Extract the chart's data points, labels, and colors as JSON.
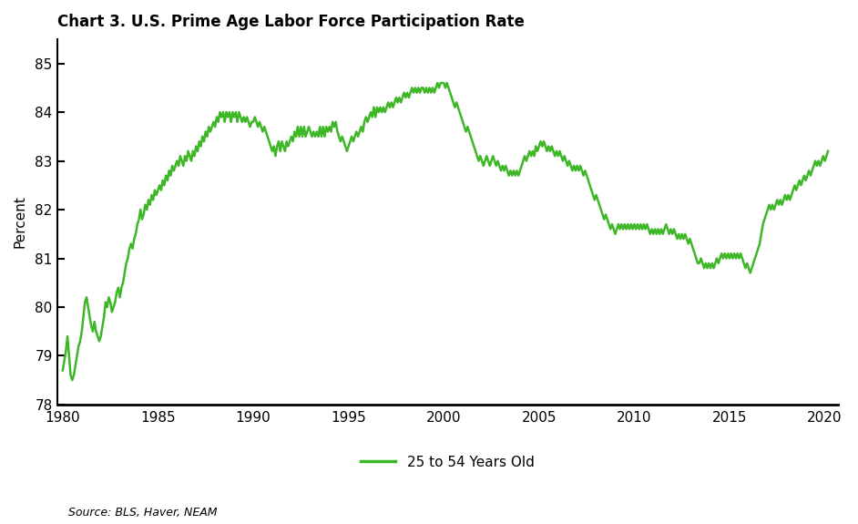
{
  "title": "Chart 3. U.S. Prime Age Labor Force Participation Rate",
  "ylabel": "Percent",
  "legend_label": "25 to 54 Years Old",
  "source": "Source: BLS, Haver, NEAM",
  "line_color": "#3db726",
  "ylim": [
    78,
    85.5
  ],
  "yticks": [
    78,
    79,
    80,
    81,
    82,
    83,
    84,
    85
  ],
  "xlim_start": 1979.7,
  "xlim_end": 2020.7,
  "xticks": [
    1980,
    1985,
    1990,
    1995,
    2000,
    2005,
    2010,
    2015,
    2020
  ],
  "data": [
    [
      1980.0,
      78.7
    ],
    [
      1980.083,
      78.9
    ],
    [
      1980.167,
      79.1
    ],
    [
      1980.25,
      79.4
    ],
    [
      1980.333,
      79.0
    ],
    [
      1980.417,
      78.6
    ],
    [
      1980.5,
      78.5
    ],
    [
      1980.583,
      78.6
    ],
    [
      1980.667,
      78.8
    ],
    [
      1980.75,
      79.0
    ],
    [
      1980.833,
      79.2
    ],
    [
      1980.917,
      79.3
    ],
    [
      1981.0,
      79.5
    ],
    [
      1981.083,
      79.8
    ],
    [
      1981.167,
      80.1
    ],
    [
      1981.25,
      80.2
    ],
    [
      1981.333,
      80.0
    ],
    [
      1981.417,
      79.8
    ],
    [
      1981.5,
      79.6
    ],
    [
      1981.583,
      79.5
    ],
    [
      1981.667,
      79.7
    ],
    [
      1981.75,
      79.5
    ],
    [
      1981.833,
      79.4
    ],
    [
      1981.917,
      79.3
    ],
    [
      1982.0,
      79.4
    ],
    [
      1982.083,
      79.6
    ],
    [
      1982.167,
      79.8
    ],
    [
      1982.25,
      80.1
    ],
    [
      1982.333,
      80.0
    ],
    [
      1982.417,
      80.2
    ],
    [
      1982.5,
      80.1
    ],
    [
      1982.583,
      79.9
    ],
    [
      1982.667,
      80.0
    ],
    [
      1982.75,
      80.1
    ],
    [
      1982.833,
      80.3
    ],
    [
      1982.917,
      80.4
    ],
    [
      1983.0,
      80.2
    ],
    [
      1983.083,
      80.4
    ],
    [
      1983.167,
      80.5
    ],
    [
      1983.25,
      80.7
    ],
    [
      1983.333,
      80.9
    ],
    [
      1983.417,
      81.0
    ],
    [
      1983.5,
      81.2
    ],
    [
      1983.583,
      81.3
    ],
    [
      1983.667,
      81.2
    ],
    [
      1983.75,
      81.4
    ],
    [
      1983.833,
      81.5
    ],
    [
      1983.917,
      81.7
    ],
    [
      1984.0,
      81.8
    ],
    [
      1984.083,
      82.0
    ],
    [
      1984.167,
      81.8
    ],
    [
      1984.25,
      81.9
    ],
    [
      1984.333,
      82.1
    ],
    [
      1984.417,
      82.0
    ],
    [
      1984.5,
      82.2
    ],
    [
      1984.583,
      82.1
    ],
    [
      1984.667,
      82.3
    ],
    [
      1984.75,
      82.2
    ],
    [
      1984.833,
      82.4
    ],
    [
      1984.917,
      82.3
    ],
    [
      1985.0,
      82.4
    ],
    [
      1985.083,
      82.5
    ],
    [
      1985.167,
      82.4
    ],
    [
      1985.25,
      82.6
    ],
    [
      1985.333,
      82.5
    ],
    [
      1985.417,
      82.7
    ],
    [
      1985.5,
      82.6
    ],
    [
      1985.583,
      82.8
    ],
    [
      1985.667,
      82.7
    ],
    [
      1985.75,
      82.9
    ],
    [
      1985.833,
      82.8
    ],
    [
      1985.917,
      82.9
    ],
    [
      1986.0,
      83.0
    ],
    [
      1986.083,
      82.9
    ],
    [
      1986.167,
      83.1
    ],
    [
      1986.25,
      83.0
    ],
    [
      1986.333,
      82.9
    ],
    [
      1986.417,
      83.1
    ],
    [
      1986.5,
      83.0
    ],
    [
      1986.583,
      83.2
    ],
    [
      1986.667,
      83.1
    ],
    [
      1986.75,
      83.0
    ],
    [
      1986.833,
      83.2
    ],
    [
      1986.917,
      83.1
    ],
    [
      1987.0,
      83.3
    ],
    [
      1987.083,
      83.2
    ],
    [
      1987.167,
      83.4
    ],
    [
      1987.25,
      83.3
    ],
    [
      1987.333,
      83.5
    ],
    [
      1987.417,
      83.4
    ],
    [
      1987.5,
      83.6
    ],
    [
      1987.583,
      83.5
    ],
    [
      1987.667,
      83.7
    ],
    [
      1987.75,
      83.6
    ],
    [
      1987.833,
      83.7
    ],
    [
      1987.917,
      83.8
    ],
    [
      1988.0,
      83.7
    ],
    [
      1988.083,
      83.9
    ],
    [
      1988.167,
      83.8
    ],
    [
      1988.25,
      84.0
    ],
    [
      1988.333,
      83.9
    ],
    [
      1988.417,
      84.0
    ],
    [
      1988.5,
      83.8
    ],
    [
      1988.583,
      84.0
    ],
    [
      1988.667,
      83.9
    ],
    [
      1988.75,
      84.0
    ],
    [
      1988.833,
      83.8
    ],
    [
      1988.917,
      84.0
    ],
    [
      1989.0,
      83.9
    ],
    [
      1989.083,
      84.0
    ],
    [
      1989.167,
      83.8
    ],
    [
      1989.25,
      84.0
    ],
    [
      1989.333,
      83.9
    ],
    [
      1989.417,
      83.8
    ],
    [
      1989.5,
      83.9
    ],
    [
      1989.583,
      83.8
    ],
    [
      1989.667,
      83.9
    ],
    [
      1989.75,
      83.8
    ],
    [
      1989.833,
      83.7
    ],
    [
      1989.917,
      83.8
    ],
    [
      1990.0,
      83.8
    ],
    [
      1990.083,
      83.9
    ],
    [
      1990.167,
      83.8
    ],
    [
      1990.25,
      83.7
    ],
    [
      1990.333,
      83.8
    ],
    [
      1990.417,
      83.7
    ],
    [
      1990.5,
      83.6
    ],
    [
      1990.583,
      83.7
    ],
    [
      1990.667,
      83.6
    ],
    [
      1990.75,
      83.5
    ],
    [
      1990.833,
      83.4
    ],
    [
      1990.917,
      83.3
    ],
    [
      1991.0,
      83.2
    ],
    [
      1991.083,
      83.3
    ],
    [
      1991.167,
      83.1
    ],
    [
      1991.25,
      83.3
    ],
    [
      1991.333,
      83.4
    ],
    [
      1991.417,
      83.2
    ],
    [
      1991.5,
      83.4
    ],
    [
      1991.583,
      83.3
    ],
    [
      1991.667,
      83.2
    ],
    [
      1991.75,
      83.4
    ],
    [
      1991.833,
      83.3
    ],
    [
      1991.917,
      83.4
    ],
    [
      1992.0,
      83.5
    ],
    [
      1992.083,
      83.4
    ],
    [
      1992.167,
      83.6
    ],
    [
      1992.25,
      83.5
    ],
    [
      1992.333,
      83.7
    ],
    [
      1992.417,
      83.5
    ],
    [
      1992.5,
      83.7
    ],
    [
      1992.583,
      83.5
    ],
    [
      1992.667,
      83.7
    ],
    [
      1992.75,
      83.5
    ],
    [
      1992.833,
      83.6
    ],
    [
      1992.917,
      83.7
    ],
    [
      1993.0,
      83.6
    ],
    [
      1993.083,
      83.5
    ],
    [
      1993.167,
      83.6
    ],
    [
      1993.25,
      83.5
    ],
    [
      1993.333,
      83.6
    ],
    [
      1993.417,
      83.5
    ],
    [
      1993.5,
      83.7
    ],
    [
      1993.583,
      83.5
    ],
    [
      1993.667,
      83.7
    ],
    [
      1993.75,
      83.5
    ],
    [
      1993.833,
      83.7
    ],
    [
      1993.917,
      83.6
    ],
    [
      1994.0,
      83.7
    ],
    [
      1994.083,
      83.6
    ],
    [
      1994.167,
      83.8
    ],
    [
      1994.25,
      83.7
    ],
    [
      1994.333,
      83.8
    ],
    [
      1994.417,
      83.6
    ],
    [
      1994.5,
      83.5
    ],
    [
      1994.583,
      83.4
    ],
    [
      1994.667,
      83.5
    ],
    [
      1994.75,
      83.4
    ],
    [
      1994.833,
      83.3
    ],
    [
      1994.917,
      83.2
    ],
    [
      1995.0,
      83.3
    ],
    [
      1995.083,
      83.4
    ],
    [
      1995.167,
      83.5
    ],
    [
      1995.25,
      83.4
    ],
    [
      1995.333,
      83.5
    ],
    [
      1995.417,
      83.6
    ],
    [
      1995.5,
      83.5
    ],
    [
      1995.583,
      83.6
    ],
    [
      1995.667,
      83.7
    ],
    [
      1995.75,
      83.6
    ],
    [
      1995.833,
      83.8
    ],
    [
      1995.917,
      83.9
    ],
    [
      1996.0,
      83.8
    ],
    [
      1996.083,
      83.9
    ],
    [
      1996.167,
      84.0
    ],
    [
      1996.25,
      83.9
    ],
    [
      1996.333,
      84.1
    ],
    [
      1996.417,
      83.9
    ],
    [
      1996.5,
      84.1
    ],
    [
      1996.583,
      84.0
    ],
    [
      1996.667,
      84.1
    ],
    [
      1996.75,
      84.0
    ],
    [
      1996.833,
      84.1
    ],
    [
      1996.917,
      84.0
    ],
    [
      1997.0,
      84.1
    ],
    [
      1997.083,
      84.2
    ],
    [
      1997.167,
      84.1
    ],
    [
      1997.25,
      84.2
    ],
    [
      1997.333,
      84.1
    ],
    [
      1997.417,
      84.2
    ],
    [
      1997.5,
      84.3
    ],
    [
      1997.583,
      84.2
    ],
    [
      1997.667,
      84.3
    ],
    [
      1997.75,
      84.2
    ],
    [
      1997.833,
      84.3
    ],
    [
      1997.917,
      84.4
    ],
    [
      1998.0,
      84.3
    ],
    [
      1998.083,
      84.4
    ],
    [
      1998.167,
      84.3
    ],
    [
      1998.25,
      84.4
    ],
    [
      1998.333,
      84.5
    ],
    [
      1998.417,
      84.4
    ],
    [
      1998.5,
      84.5
    ],
    [
      1998.583,
      84.4
    ],
    [
      1998.667,
      84.5
    ],
    [
      1998.75,
      84.4
    ],
    [
      1998.833,
      84.5
    ],
    [
      1998.917,
      84.5
    ],
    [
      1999.0,
      84.4
    ],
    [
      1999.083,
      84.5
    ],
    [
      1999.167,
      84.4
    ],
    [
      1999.25,
      84.5
    ],
    [
      1999.333,
      84.4
    ],
    [
      1999.417,
      84.5
    ],
    [
      1999.5,
      84.4
    ],
    [
      1999.583,
      84.5
    ],
    [
      1999.667,
      84.6
    ],
    [
      1999.75,
      84.5
    ],
    [
      1999.833,
      84.6
    ],
    [
      1999.917,
      84.6
    ],
    [
      2000.0,
      84.6
    ],
    [
      2000.083,
      84.5
    ],
    [
      2000.167,
      84.6
    ],
    [
      2000.25,
      84.5
    ],
    [
      2000.333,
      84.4
    ],
    [
      2000.417,
      84.3
    ],
    [
      2000.5,
      84.2
    ],
    [
      2000.583,
      84.1
    ],
    [
      2000.667,
      84.2
    ],
    [
      2000.75,
      84.1
    ],
    [
      2000.833,
      84.0
    ],
    [
      2000.917,
      83.9
    ],
    [
      2001.0,
      83.8
    ],
    [
      2001.083,
      83.7
    ],
    [
      2001.167,
      83.6
    ],
    [
      2001.25,
      83.7
    ],
    [
      2001.333,
      83.6
    ],
    [
      2001.417,
      83.5
    ],
    [
      2001.5,
      83.4
    ],
    [
      2001.583,
      83.3
    ],
    [
      2001.667,
      83.2
    ],
    [
      2001.75,
      83.1
    ],
    [
      2001.833,
      83.0
    ],
    [
      2001.917,
      83.1
    ],
    [
      2002.0,
      83.0
    ],
    [
      2002.083,
      82.9
    ],
    [
      2002.167,
      83.0
    ],
    [
      2002.25,
      83.1
    ],
    [
      2002.333,
      83.0
    ],
    [
      2002.417,
      82.9
    ],
    [
      2002.5,
      83.0
    ],
    [
      2002.583,
      83.1
    ],
    [
      2002.667,
      83.0
    ],
    [
      2002.75,
      82.9
    ],
    [
      2002.833,
      83.0
    ],
    [
      2002.917,
      82.9
    ],
    [
      2003.0,
      82.8
    ],
    [
      2003.083,
      82.9
    ],
    [
      2003.167,
      82.8
    ],
    [
      2003.25,
      82.9
    ],
    [
      2003.333,
      82.8
    ],
    [
      2003.417,
      82.7
    ],
    [
      2003.5,
      82.8
    ],
    [
      2003.583,
      82.7
    ],
    [
      2003.667,
      82.8
    ],
    [
      2003.75,
      82.7
    ],
    [
      2003.833,
      82.8
    ],
    [
      2003.917,
      82.7
    ],
    [
      2004.0,
      82.8
    ],
    [
      2004.083,
      82.9
    ],
    [
      2004.167,
      83.0
    ],
    [
      2004.25,
      83.1
    ],
    [
      2004.333,
      83.0
    ],
    [
      2004.417,
      83.1
    ],
    [
      2004.5,
      83.2
    ],
    [
      2004.583,
      83.1
    ],
    [
      2004.667,
      83.2
    ],
    [
      2004.75,
      83.1
    ],
    [
      2004.833,
      83.3
    ],
    [
      2004.917,
      83.2
    ],
    [
      2005.0,
      83.3
    ],
    [
      2005.083,
      83.4
    ],
    [
      2005.167,
      83.3
    ],
    [
      2005.25,
      83.4
    ],
    [
      2005.333,
      83.3
    ],
    [
      2005.417,
      83.2
    ],
    [
      2005.5,
      83.3
    ],
    [
      2005.583,
      83.2
    ],
    [
      2005.667,
      83.3
    ],
    [
      2005.75,
      83.2
    ],
    [
      2005.833,
      83.1
    ],
    [
      2005.917,
      83.2
    ],
    [
      2006.0,
      83.1
    ],
    [
      2006.083,
      83.2
    ],
    [
      2006.167,
      83.1
    ],
    [
      2006.25,
      83.0
    ],
    [
      2006.333,
      83.1
    ],
    [
      2006.417,
      83.0
    ],
    [
      2006.5,
      82.9
    ],
    [
      2006.583,
      83.0
    ],
    [
      2006.667,
      82.9
    ],
    [
      2006.75,
      82.8
    ],
    [
      2006.833,
      82.9
    ],
    [
      2006.917,
      82.8
    ],
    [
      2007.0,
      82.9
    ],
    [
      2007.083,
      82.8
    ],
    [
      2007.167,
      82.9
    ],
    [
      2007.25,
      82.8
    ],
    [
      2007.333,
      82.7
    ],
    [
      2007.417,
      82.8
    ],
    [
      2007.5,
      82.7
    ],
    [
      2007.583,
      82.6
    ],
    [
      2007.667,
      82.5
    ],
    [
      2007.75,
      82.4
    ],
    [
      2007.833,
      82.3
    ],
    [
      2007.917,
      82.2
    ],
    [
      2008.0,
      82.3
    ],
    [
      2008.083,
      82.2
    ],
    [
      2008.167,
      82.1
    ],
    [
      2008.25,
      82.0
    ],
    [
      2008.333,
      81.9
    ],
    [
      2008.417,
      81.8
    ],
    [
      2008.5,
      81.9
    ],
    [
      2008.583,
      81.8
    ],
    [
      2008.667,
      81.7
    ],
    [
      2008.75,
      81.6
    ],
    [
      2008.833,
      81.7
    ],
    [
      2008.917,
      81.6
    ],
    [
      2009.0,
      81.5
    ],
    [
      2009.083,
      81.6
    ],
    [
      2009.167,
      81.7
    ],
    [
      2009.25,
      81.6
    ],
    [
      2009.333,
      81.7
    ],
    [
      2009.417,
      81.6
    ],
    [
      2009.5,
      81.7
    ],
    [
      2009.583,
      81.6
    ],
    [
      2009.667,
      81.7
    ],
    [
      2009.75,
      81.6
    ],
    [
      2009.833,
      81.7
    ],
    [
      2009.917,
      81.6
    ],
    [
      2010.0,
      81.7
    ],
    [
      2010.083,
      81.6
    ],
    [
      2010.167,
      81.7
    ],
    [
      2010.25,
      81.6
    ],
    [
      2010.333,
      81.7
    ],
    [
      2010.417,
      81.6
    ],
    [
      2010.5,
      81.7
    ],
    [
      2010.583,
      81.6
    ],
    [
      2010.667,
      81.7
    ],
    [
      2010.75,
      81.6
    ],
    [
      2010.833,
      81.5
    ],
    [
      2010.917,
      81.6
    ],
    [
      2011.0,
      81.5
    ],
    [
      2011.083,
      81.6
    ],
    [
      2011.167,
      81.5
    ],
    [
      2011.25,
      81.6
    ],
    [
      2011.333,
      81.5
    ],
    [
      2011.417,
      81.6
    ],
    [
      2011.5,
      81.5
    ],
    [
      2011.583,
      81.6
    ],
    [
      2011.667,
      81.7
    ],
    [
      2011.75,
      81.6
    ],
    [
      2011.833,
      81.5
    ],
    [
      2011.917,
      81.6
    ],
    [
      2012.0,
      81.5
    ],
    [
      2012.083,
      81.6
    ],
    [
      2012.167,
      81.5
    ],
    [
      2012.25,
      81.4
    ],
    [
      2012.333,
      81.5
    ],
    [
      2012.417,
      81.4
    ],
    [
      2012.5,
      81.5
    ],
    [
      2012.583,
      81.4
    ],
    [
      2012.667,
      81.5
    ],
    [
      2012.75,
      81.4
    ],
    [
      2012.833,
      81.3
    ],
    [
      2012.917,
      81.4
    ],
    [
      2013.0,
      81.3
    ],
    [
      2013.083,
      81.2
    ],
    [
      2013.167,
      81.1
    ],
    [
      2013.25,
      81.0
    ],
    [
      2013.333,
      80.9
    ],
    [
      2013.417,
      80.9
    ],
    [
      2013.5,
      81.0
    ],
    [
      2013.583,
      80.9
    ],
    [
      2013.667,
      80.8
    ],
    [
      2013.75,
      80.9
    ],
    [
      2013.833,
      80.8
    ],
    [
      2013.917,
      80.9
    ],
    [
      2014.0,
      80.8
    ],
    [
      2014.083,
      80.9
    ],
    [
      2014.167,
      80.8
    ],
    [
      2014.25,
      80.9
    ],
    [
      2014.333,
      81.0
    ],
    [
      2014.417,
      80.9
    ],
    [
      2014.5,
      81.0
    ],
    [
      2014.583,
      81.1
    ],
    [
      2014.667,
      81.0
    ],
    [
      2014.75,
      81.1
    ],
    [
      2014.833,
      81.0
    ],
    [
      2014.917,
      81.1
    ],
    [
      2015.0,
      81.0
    ],
    [
      2015.083,
      81.1
    ],
    [
      2015.167,
      81.0
    ],
    [
      2015.25,
      81.1
    ],
    [
      2015.333,
      81.0
    ],
    [
      2015.417,
      81.1
    ],
    [
      2015.5,
      81.0
    ],
    [
      2015.583,
      81.1
    ],
    [
      2015.667,
      81.0
    ],
    [
      2015.75,
      80.9
    ],
    [
      2015.833,
      80.8
    ],
    [
      2015.917,
      80.9
    ],
    [
      2016.0,
      80.8
    ],
    [
      2016.083,
      80.7
    ],
    [
      2016.167,
      80.8
    ],
    [
      2016.25,
      80.9
    ],
    [
      2016.333,
      81.0
    ],
    [
      2016.417,
      81.1
    ],
    [
      2016.5,
      81.2
    ],
    [
      2016.583,
      81.3
    ],
    [
      2016.667,
      81.5
    ],
    [
      2016.75,
      81.7
    ],
    [
      2016.833,
      81.8
    ],
    [
      2016.917,
      81.9
    ],
    [
      2017.0,
      82.0
    ],
    [
      2017.083,
      82.1
    ],
    [
      2017.167,
      82.0
    ],
    [
      2017.25,
      82.1
    ],
    [
      2017.333,
      82.0
    ],
    [
      2017.417,
      82.1
    ],
    [
      2017.5,
      82.2
    ],
    [
      2017.583,
      82.1
    ],
    [
      2017.667,
      82.2
    ],
    [
      2017.75,
      82.1
    ],
    [
      2017.833,
      82.2
    ],
    [
      2017.917,
      82.3
    ],
    [
      2018.0,
      82.2
    ],
    [
      2018.083,
      82.3
    ],
    [
      2018.167,
      82.2
    ],
    [
      2018.25,
      82.3
    ],
    [
      2018.333,
      82.4
    ],
    [
      2018.417,
      82.5
    ],
    [
      2018.5,
      82.4
    ],
    [
      2018.583,
      82.5
    ],
    [
      2018.667,
      82.6
    ],
    [
      2018.75,
      82.5
    ],
    [
      2018.833,
      82.6
    ],
    [
      2018.917,
      82.7
    ],
    [
      2019.0,
      82.6
    ],
    [
      2019.083,
      82.7
    ],
    [
      2019.167,
      82.8
    ],
    [
      2019.25,
      82.7
    ],
    [
      2019.333,
      82.8
    ],
    [
      2019.417,
      82.9
    ],
    [
      2019.5,
      83.0
    ],
    [
      2019.583,
      82.9
    ],
    [
      2019.667,
      83.0
    ],
    [
      2019.75,
      82.9
    ],
    [
      2019.833,
      83.0
    ],
    [
      2019.917,
      83.1
    ],
    [
      2020.0,
      83.0
    ],
    [
      2020.083,
      83.1
    ],
    [
      2020.167,
      83.2
    ]
  ]
}
